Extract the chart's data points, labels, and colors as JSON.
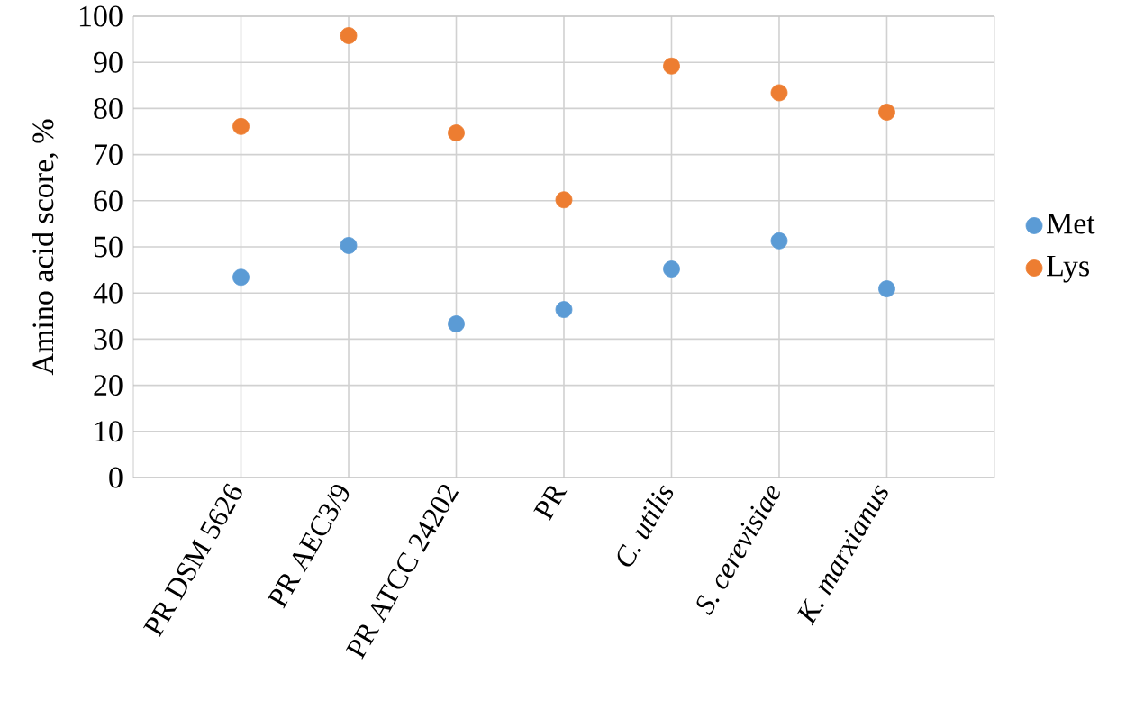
{
  "chart_data": {
    "type": "scatter",
    "ylabel": "Amino acid score, %",
    "categories": [
      "PR DSM 5626",
      "PR AEC3/9",
      "PR ATCC 24202",
      "PR",
      "*C. utilis*",
      "*S. cerevisiae*",
      "*K. marxianus*"
    ],
    "series": [
      {
        "name": "Met",
        "color": "#5b9bd5",
        "values": [
          43.4,
          50.3,
          33.3,
          36.4,
          45.2,
          51.3,
          40.9
        ]
      },
      {
        "name": "Lys",
        "color": "#ed7d31",
        "values": [
          76.1,
          95.8,
          74.7,
          60.2,
          89.2,
          83.4,
          79.2
        ]
      }
    ],
    "ylim": [
      0,
      100
    ],
    "yticks": [
      0,
      10,
      20,
      30,
      40,
      50,
      60,
      70,
      80,
      90,
      100
    ],
    "grid": true,
    "legend": "right"
  }
}
